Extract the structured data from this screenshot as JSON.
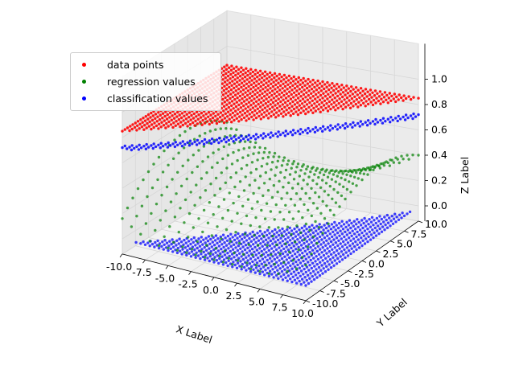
{
  "chart_data": {
    "type": "scatter",
    "projection": "3d",
    "xlabel": "X Label",
    "ylabel": "Y Label",
    "zlabel": "Z Label",
    "xlim": [
      -10,
      10
    ],
    "ylim": [
      -10,
      10
    ],
    "zlim": [
      0,
      1
    ],
    "xticks": [
      "-10.0",
      "-7.5",
      "-5.0",
      "-2.5",
      "0.0",
      "2.5",
      "5.0",
      "7.5",
      "10.0"
    ],
    "yticks": [
      "-10.0",
      "-7.5",
      "-5.0",
      "-2.5",
      "0.0",
      "2.5",
      "5.0",
      "7.5",
      "10.0"
    ],
    "zticks": [
      "0.0",
      "0.2",
      "0.4",
      "0.6",
      "0.8",
      "1.0"
    ],
    "grid": true,
    "legend_position": "upper-left",
    "series": [
      {
        "name": "data points",
        "color": "#ff0000",
        "description": "z = 1 where y >= x, else 0 (plotted at z=1 region)"
      },
      {
        "name": "regression values",
        "color": "#008000",
        "description": "smooth saddle-shaped surface between 0 and 0.6"
      },
      {
        "name": "classification values",
        "color": "#0000ff",
        "description": "z = 0 plane with z = 1 edge band"
      }
    ]
  }
}
